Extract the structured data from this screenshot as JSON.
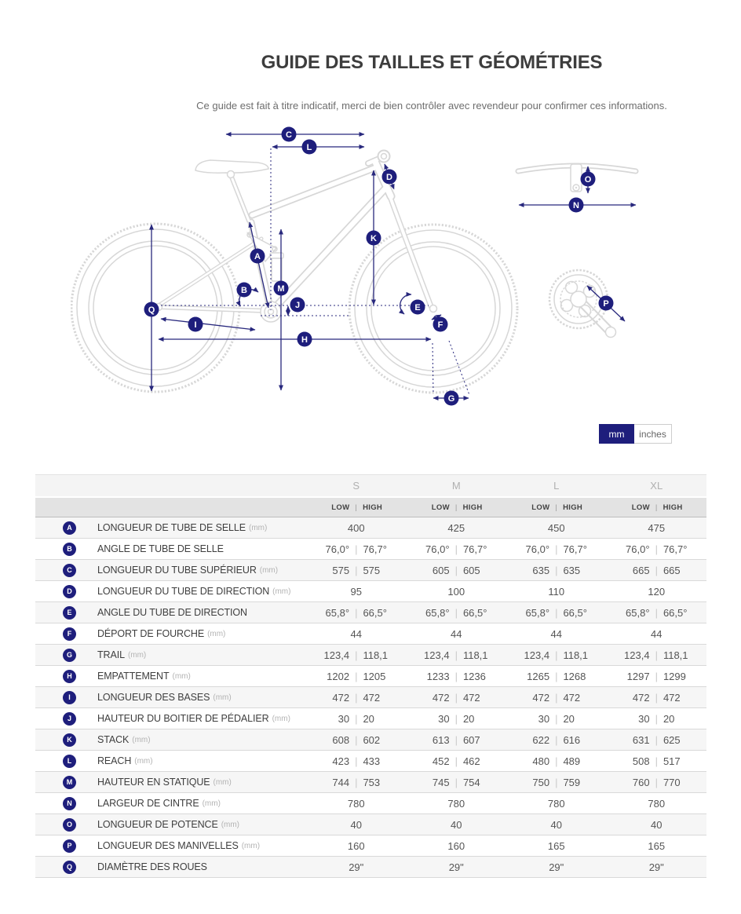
{
  "header": {
    "title": "GUIDE DES TAILLES ET GÉOMÉTRIES",
    "subtitle": "Ce guide est fait à titre indicatif, merci de bien contrôler avec revendeur pour confirmer ces informations."
  },
  "toggle": {
    "mm": "mm",
    "inches": "inches",
    "selected": "mm"
  },
  "colors": {
    "accent_navy": "#1e1e7c",
    "diagram_lines": "#d7d7d7"
  },
  "diagram": {
    "letters": [
      "A",
      "B",
      "C",
      "D",
      "E",
      "F",
      "G",
      "H",
      "I",
      "J",
      "K",
      "L",
      "M",
      "N",
      "O",
      "P",
      "Q"
    ]
  },
  "table": {
    "sizes": [
      "S",
      "M",
      "L",
      "XL"
    ],
    "low_label": "LOW",
    "high_label": "HIGH",
    "rows": [
      {
        "letter": "A",
        "label": "LONGUEUR DE TUBE DE SELLE",
        "unit": "(mm)",
        "values": [
          [
            "400"
          ],
          [
            "425"
          ],
          [
            "450"
          ],
          [
            "475"
          ]
        ]
      },
      {
        "letter": "B",
        "label": "ANGLE DE TUBE DE SELLE",
        "unit": "",
        "values": [
          [
            "76,0°",
            "76,7°"
          ],
          [
            "76,0°",
            "76,7°"
          ],
          [
            "76,0°",
            "76,7°"
          ],
          [
            "76,0°",
            "76,7°"
          ]
        ]
      },
      {
        "letter": "C",
        "label": "LONGUEUR DU TUBE SUPÉRIEUR",
        "unit": "(mm)",
        "values": [
          [
            "575",
            "575"
          ],
          [
            "605",
            "605"
          ],
          [
            "635",
            "635"
          ],
          [
            "665",
            "665"
          ]
        ]
      },
      {
        "letter": "D",
        "label": "LONGUEUR DU TUBE DE DIRECTION",
        "unit": "(mm)",
        "values": [
          [
            "95"
          ],
          [
            "100"
          ],
          [
            "110"
          ],
          [
            "120"
          ]
        ]
      },
      {
        "letter": "E",
        "label": "ANGLE DU TUBE DE DIRECTION",
        "unit": "",
        "values": [
          [
            "65,8°",
            "66,5°"
          ],
          [
            "65,8°",
            "66,5°"
          ],
          [
            "65,8°",
            "66,5°"
          ],
          [
            "65,8°",
            "66,5°"
          ]
        ]
      },
      {
        "letter": "F",
        "label": "DÉPORT DE FOURCHE",
        "unit": "(mm)",
        "values": [
          [
            "44"
          ],
          [
            "44"
          ],
          [
            "44"
          ],
          [
            "44"
          ]
        ]
      },
      {
        "letter": "G",
        "label": "TRAIL",
        "unit": "(mm)",
        "values": [
          [
            "123,4",
            "118,1"
          ],
          [
            "123,4",
            "118,1"
          ],
          [
            "123,4",
            "118,1"
          ],
          [
            "123,4",
            "118,1"
          ]
        ]
      },
      {
        "letter": "H",
        "label": "EMPATTEMENT",
        "unit": "(mm)",
        "values": [
          [
            "1202",
            "1205"
          ],
          [
            "1233",
            "1236"
          ],
          [
            "1265",
            "1268"
          ],
          [
            "1297",
            "1299"
          ]
        ]
      },
      {
        "letter": "I",
        "label": "LONGUEUR DES BASES",
        "unit": "(mm)",
        "values": [
          [
            "472",
            "472"
          ],
          [
            "472",
            "472"
          ],
          [
            "472",
            "472"
          ],
          [
            "472",
            "472"
          ]
        ]
      },
      {
        "letter": "J",
        "label": "HAUTEUR DU BOITIER DE PÉDALIER",
        "unit": "(mm)",
        "values": [
          [
            "30",
            "20"
          ],
          [
            "30",
            "20"
          ],
          [
            "30",
            "20"
          ],
          [
            "30",
            "20"
          ]
        ]
      },
      {
        "letter": "K",
        "label": "STACK",
        "unit": "(mm)",
        "values": [
          [
            "608",
            "602"
          ],
          [
            "613",
            "607"
          ],
          [
            "622",
            "616"
          ],
          [
            "631",
            "625"
          ]
        ]
      },
      {
        "letter": "L",
        "label": "REACH",
        "unit": "(mm)",
        "values": [
          [
            "423",
            "433"
          ],
          [
            "452",
            "462"
          ],
          [
            "480",
            "489"
          ],
          [
            "508",
            "517"
          ]
        ]
      },
      {
        "letter": "M",
        "label": "HAUTEUR EN STATIQUE",
        "unit": "(mm)",
        "values": [
          [
            "744",
            "753"
          ],
          [
            "745",
            "754"
          ],
          [
            "750",
            "759"
          ],
          [
            "760",
            "770"
          ]
        ]
      },
      {
        "letter": "N",
        "label": "LARGEUR DE CINTRE",
        "unit": "(mm)",
        "values": [
          [
            "780"
          ],
          [
            "780"
          ],
          [
            "780"
          ],
          [
            "780"
          ]
        ]
      },
      {
        "letter": "O",
        "label": "LONGUEUR DE POTENCE",
        "unit": "(mm)",
        "values": [
          [
            "40"
          ],
          [
            "40"
          ],
          [
            "40"
          ],
          [
            "40"
          ]
        ]
      },
      {
        "letter": "P",
        "label": "LONGUEUR DES MANIVELLES",
        "unit": "(mm)",
        "values": [
          [
            "160"
          ],
          [
            "160"
          ],
          [
            "165"
          ],
          [
            "165"
          ]
        ]
      },
      {
        "letter": "Q",
        "label": "DIAMÈTRE DES ROUES",
        "unit": "",
        "values": [
          [
            "29\""
          ],
          [
            "29\""
          ],
          [
            "29\""
          ],
          [
            "29\""
          ]
        ]
      }
    ]
  }
}
